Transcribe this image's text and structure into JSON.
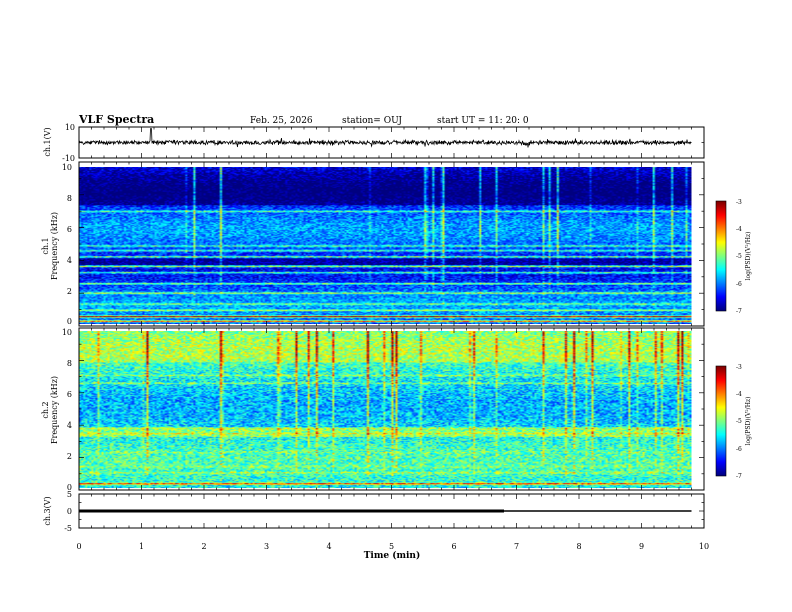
{
  "header": {
    "title": "VLF Spectra",
    "date": "Feb. 25, 2026",
    "station": "station= OUJ",
    "start": "start  UT  =    11: 20: 0"
  },
  "chart_data": [
    {
      "type": "line",
      "panel": "ch1-waveform",
      "ylabel": "ch.1(V)",
      "ylim": [
        -10,
        10
      ],
      "yticks": [
        "10",
        "-10"
      ],
      "xlim": [
        0,
        10
      ],
      "baseline": 0,
      "trace_end": 9.8
    },
    {
      "type": "heatmap",
      "panel": "ch1-spectrogram",
      "ylabel_lines": [
        "ch.1",
        "Frequency (kHz)"
      ],
      "ylim": [
        0,
        10
      ],
      "yticks": [
        "0",
        "2",
        "4",
        "6",
        "8",
        "10"
      ],
      "xlim": [
        0,
        10
      ],
      "data_end": 9.8,
      "colorbar": {
        "label": "log(PSD)(V²/Hz)",
        "range": [
          -7,
          -3
        ],
        "ticks": [
          "-3",
          "-4",
          "-5",
          "-6",
          "-7"
        ]
      },
      "bands": [
        {
          "f": 0.2,
          "v": -3.6
        },
        {
          "f": 0.5,
          "v": -3.3
        },
        {
          "f": 0.9,
          "v": -4.6
        },
        {
          "f": 1.3,
          "v": -4.9
        },
        {
          "f": 2.0,
          "v": -4.8
        },
        {
          "f": 2.6,
          "v": -4.7
        },
        {
          "f": 3.3,
          "v": -5.0
        },
        {
          "f": 3.7,
          "v": -4.6
        },
        {
          "f": 4.3,
          "v": -4.8
        },
        {
          "f": 4.7,
          "v": -5.1
        },
        {
          "f": 5.0,
          "v": -5.2
        },
        {
          "f": 7.2,
          "v": -5.1
        }
      ]
    },
    {
      "type": "heatmap",
      "panel": "ch2-spectrogram",
      "ylabel_lines": [
        "ch.2",
        "Frequency (kHz)"
      ],
      "ylim": [
        0,
        10
      ],
      "yticks": [
        "0",
        "2",
        "4",
        "6",
        "8",
        "10"
      ],
      "xlim": [
        0,
        10
      ],
      "data_end": 9.8,
      "colorbar": {
        "label": "log(PSD)(V²/Hz)",
        "range": [
          -7,
          -3
        ],
        "ticks": [
          "-3",
          "-4",
          "-5",
          "-6",
          "-7"
        ]
      },
      "bands": [
        {
          "f": 0.3,
          "v": -3.5
        },
        {
          "f": 1.0,
          "v": -4.8
        },
        {
          "f": 1.4,
          "v": -4.9
        },
        {
          "f": 2.3,
          "v": -5.0
        },
        {
          "f": 3.5,
          "v": -4.6
        },
        {
          "f": 3.8,
          "v": -4.7
        },
        {
          "f": 6.7,
          "v": -4.9
        },
        {
          "f": 7.2,
          "v": -4.9
        }
      ]
    },
    {
      "type": "line",
      "panel": "ch3-waveform",
      "ylabel": "ch.3(V)",
      "ylim": [
        -5,
        5
      ],
      "yticks": [
        "5",
        "0",
        "-5"
      ],
      "xlim": [
        0,
        10
      ],
      "xlabel": "Time (min)",
      "xticks": [
        "0",
        "1",
        "2",
        "3",
        "4",
        "5",
        "6",
        "7",
        "8",
        "9",
        "10"
      ],
      "segments": [
        {
          "x0": 0,
          "x1": 6.8,
          "y": 0,
          "weight": "thick"
        },
        {
          "x0": 6.8,
          "x1": 9.8,
          "y": 0,
          "weight": "thin"
        }
      ]
    }
  ]
}
